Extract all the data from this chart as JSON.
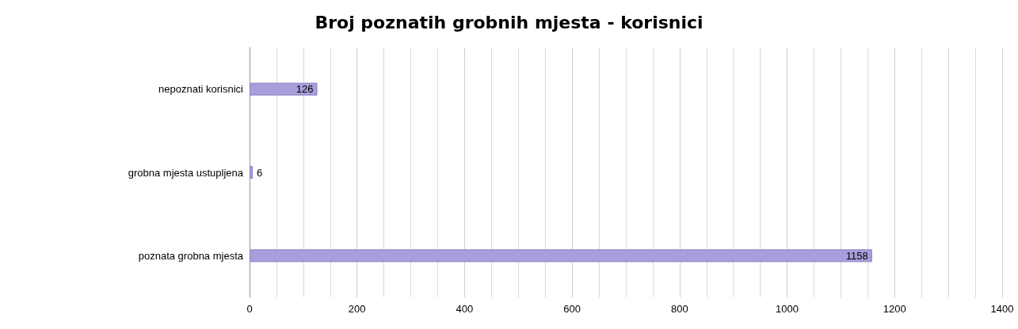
{
  "chart_data": {
    "type": "bar",
    "title": "Broj poznatih grobnih mjesta - korisnici",
    "orientation": "horizontal",
    "categories": [
      "nepoznati korisnici",
      "grobna mjesta ustupljena",
      "poznata grobna mjesta"
    ],
    "values": [
      126,
      6,
      1158
    ],
    "color": "#a99ddb",
    "xlim": [
      0,
      1400
    ],
    "xticks": [
      0,
      200,
      400,
      600,
      800,
      1000,
      1200,
      1400
    ],
    "grid": "x",
    "data_labels": true
  }
}
